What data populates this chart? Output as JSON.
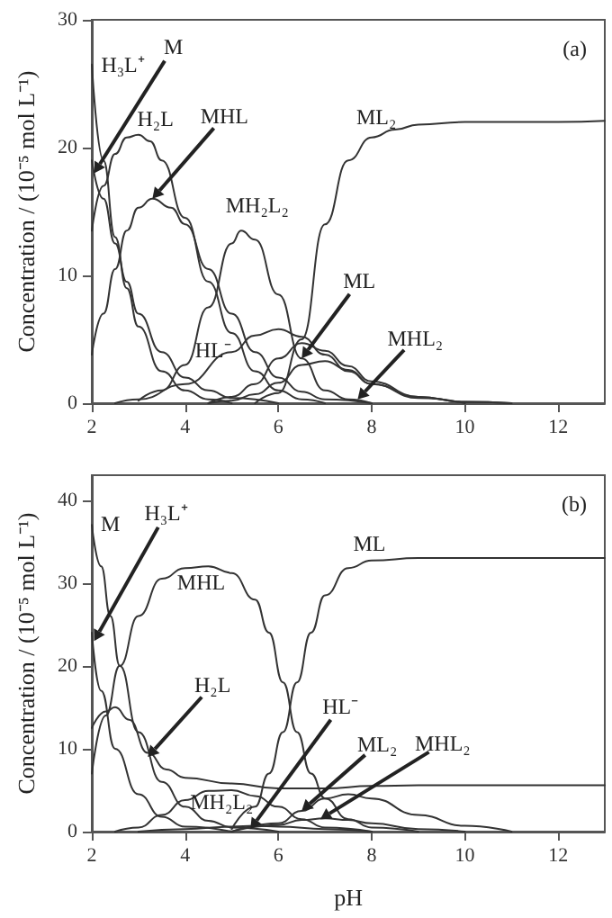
{
  "chart_data": [
    {
      "type": "line",
      "ylabel": "Concentration / (10⁻⁵ mol L⁻¹)",
      "xlim": [
        2,
        13
      ],
      "xticks": [
        2,
        4,
        6,
        8,
        10,
        12
      ],
      "ylim": [
        0,
        30
      ],
      "yticks": [
        0,
        10,
        20,
        30
      ],
      "grid": false,
      "series": [
        {
          "color": "#333333",
          "x": [
            2,
            2.25,
            2.5,
            2.75,
            3,
            3.5,
            4,
            4.5,
            5
          ],
          "values": [
            26.5,
            19,
            13,
            9,
            6,
            2.5,
            1,
            0.3,
            0
          ]
        },
        {
          "color": "#333333",
          "x": [
            2,
            2.25,
            2.5,
            2.75,
            3,
            3.5,
            4,
            4.5,
            5,
            6
          ],
          "values": [
            19,
            16,
            12.5,
            9.5,
            7,
            4,
            2,
            1,
            0.4,
            0
          ]
        },
        {
          "color": "#333333",
          "x": [
            2,
            2.25,
            2.5,
            2.75,
            3,
            3.25,
            3.5,
            4,
            4.5,
            5,
            5.5,
            6,
            6.5,
            7
          ],
          "values": [
            13.5,
            17,
            19.5,
            20.8,
            21,
            20.5,
            19,
            14.5,
            9.5,
            5.5,
            2.5,
            1,
            0.3,
            0
          ]
        },
        {
          "color": "#333333",
          "x": [
            2,
            2.25,
            2.5,
            2.75,
            3,
            3.3,
            3.7,
            4,
            4.5,
            5,
            5.5,
            6,
            6.5,
            7,
            8
          ],
          "values": [
            3.8,
            7,
            10.5,
            13.5,
            15.3,
            16,
            15.3,
            14,
            10.5,
            7,
            4,
            2,
            0.9,
            0.3,
            0
          ]
        },
        {
          "color": "#333333",
          "x": [
            3,
            3.5,
            4,
            4.5,
            5,
            5.2,
            5.5,
            6,
            6.5,
            7,
            7.5,
            8
          ],
          "values": [
            0.2,
            1,
            3,
            7.5,
            12.5,
            13.5,
            12.8,
            8.5,
            3.5,
            1,
            0.3,
            0
          ]
        },
        {
          "color": "#333333",
          "x": [
            2.5,
            3,
            4,
            5,
            5.5,
            6,
            6.5,
            7,
            7.5,
            8,
            9,
            10,
            11
          ],
          "values": [
            0,
            0.3,
            1.5,
            4,
            5.3,
            5.8,
            5.2,
            3.8,
            2.5,
            1.5,
            0.5,
            0.1,
            0
          ]
        },
        {
          "color": "#333333",
          "x": [
            4.5,
            5,
            5.5,
            6,
            6.5,
            7,
            7.5,
            8,
            9,
            10,
            11
          ],
          "values": [
            0,
            0.5,
            1.5,
            3.5,
            4.7,
            4.1,
            2.9,
            1.7,
            0.5,
            0.1,
            0
          ]
        },
        {
          "color": "#333333",
          "x": [
            4.5,
            5,
            5.5,
            6,
            6.5,
            7,
            7.5,
            8,
            9,
            10
          ],
          "values": [
            0,
            0.2,
            0.7,
            1.6,
            3,
            3.3,
            2.6,
            1.5,
            0.4,
            0
          ]
        },
        {
          "color": "#333333",
          "x": [
            5.5,
            6,
            6.5,
            7,
            7.5,
            8,
            8.5,
            9,
            10,
            11,
            12,
            13
          ],
          "values": [
            0,
            0.8,
            5,
            14,
            19,
            20.8,
            21.4,
            21.8,
            22,
            22,
            22,
            22.1
          ]
        }
      ],
      "annotations": [
        "(a)",
        {
          "text": "H₃L⁺",
          "x": 2.05,
          "y": 26.5
        },
        {
          "text": "M",
          "x": 2.05,
          "y": 18
        },
        {
          "text": "H₂L",
          "x": 2.9,
          "y": 21
        },
        {
          "text": "MHL",
          "x": 3.3,
          "y": 16
        },
        {
          "text": "MH₂L₂",
          "x": 5.2,
          "y": 13.5
        },
        {
          "text": "HL⁻",
          "x": 4.6,
          "y": 3.6
        },
        {
          "text": "ML",
          "x": 6.5,
          "y": 3.5
        },
        {
          "text": "MHL₂",
          "x": 7.7,
          "y": 0.3
        },
        {
          "text": "ML₂",
          "x": 8.1,
          "y": 21
        }
      ]
    },
    {
      "type": "line",
      "xlabel": "pH",
      "ylabel": "Concentration / (10⁻⁵ mol L⁻¹)",
      "xlim": [
        2,
        13
      ],
      "xticks": [
        2,
        4,
        6,
        8,
        10,
        12
      ],
      "ylim": [
        0,
        43
      ],
      "yticks": [
        0,
        10,
        20,
        30,
        40
      ],
      "grid": false,
      "series": [
        {
          "color": "#333333",
          "x": [
            2,
            2.2,
            2.4,
            2.6,
            3,
            3.5,
            4,
            4.5,
            5,
            6
          ],
          "values": [
            37,
            32,
            26,
            20,
            12,
            6,
            3,
            1.3,
            0.5,
            0
          ]
        },
        {
          "color": "#333333",
          "x": [
            2,
            2.2,
            2.5,
            3,
            3.5,
            4,
            5
          ],
          "values": [
            24,
            17,
            10,
            4.5,
            1.8,
            0.6,
            0
          ]
        },
        {
          "color": "#333333",
          "x": [
            2,
            2.3,
            2.5,
            2.8,
            3.2,
            3.6,
            4,
            5,
            6,
            7,
            8,
            9,
            10,
            13
          ],
          "values": [
            12.5,
            14.5,
            15,
            13.5,
            9.5,
            7.5,
            6.5,
            5.8,
            5.2,
            5.2,
            5.5,
            5.6,
            5.6,
            5.6
          ]
        },
        {
          "color": "#333333",
          "x": [
            2,
            2.3,
            2.6,
            3,
            3.5,
            4,
            4.5,
            5,
            5.5,
            5.8,
            6.1,
            6.4,
            6.7,
            7,
            7.5,
            8,
            9
          ],
          "values": [
            7,
            14,
            20,
            26,
            30.5,
            31.8,
            32,
            31.2,
            28,
            24,
            18,
            12,
            7,
            4,
            1.5,
            0.5,
            0
          ]
        },
        {
          "color": "#333333",
          "x": [
            5,
            5.5,
            5.8,
            6.1,
            6.4,
            6.7,
            7,
            7.5,
            8,
            9,
            10,
            13
          ],
          "values": [
            0.3,
            3,
            7,
            12,
            18,
            24,
            28.5,
            31.8,
            32.7,
            33,
            33,
            33
          ]
        },
        {
          "color": "#333333",
          "x": [
            2.5,
            3,
            3.5,
            4,
            4.5,
            5,
            5.5,
            6,
            6.5,
            7,
            8
          ],
          "values": [
            0,
            0.5,
            2,
            3.8,
            4.9,
            5,
            4.3,
            3,
            1.5,
            0.5,
            0
          ]
        },
        {
          "color": "#333333",
          "x": [
            3,
            4,
            5,
            5.5,
            6,
            7,
            8
          ],
          "values": [
            0,
            0.3,
            0.6,
            0.7,
            0.6,
            0.3,
            0
          ]
        },
        {
          "color": "#333333",
          "x": [
            5,
            6,
            6.5,
            7,
            7.5,
            8,
            9,
            10,
            11
          ],
          "values": [
            0,
            1,
            2.5,
            4,
            4.5,
            4,
            2,
            0.7,
            0
          ]
        },
        {
          "color": "#333333",
          "x": [
            5,
            6,
            6.5,
            7,
            7.5,
            8,
            9,
            10
          ],
          "values": [
            0,
            0.8,
            1.4,
            1.6,
            1.4,
            1,
            0.3,
            0
          ]
        }
      ],
      "annotations": [
        "(b)",
        {
          "text": "M",
          "x": 2.05,
          "y": 36.5
        },
        {
          "text": "H₃L⁺",
          "x": 2.05,
          "y": 23
        },
        {
          "text": "MHL",
          "x": 4.5,
          "y": 32
        },
        {
          "text": "ML",
          "x": 7.8,
          "y": 32.8
        },
        {
          "text": "H₂L",
          "x": 3.2,
          "y": 9
        },
        {
          "text": "HL⁻",
          "x": 5.4,
          "y": 0.3
        },
        {
          "text": "ML₂",
          "x": 6.5,
          "y": 2.5
        },
        {
          "text": "MHL₂",
          "x": 6.9,
          "y": 1.5
        },
        {
          "text": "MH₂L₂",
          "x": 4.9,
          "y": 4.9
        }
      ]
    }
  ]
}
